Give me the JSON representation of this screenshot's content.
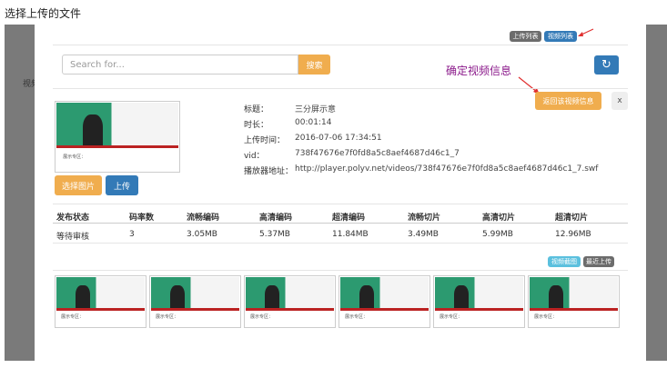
{
  "page_title": "选择上传的文件",
  "background_text": "视频",
  "tabs": {
    "upload_list": "上传列表",
    "video_list": "视频列表"
  },
  "search": {
    "placeholder": "Search for...",
    "button": "搜索"
  },
  "refresh_icon": "refresh-icon",
  "annotation": "确定视频信息",
  "return_button": "返回该视频信息",
  "close_button": "x",
  "info": {
    "labels": [
      "标题：",
      "时长：",
      "上传时间：",
      "vid：",
      "播放器地址："
    ],
    "values": [
      "三分屏示意",
      "00:01:14",
      "2016-07-06 17:34:51",
      "738f47676e7f0fd8a5c8aef4687d46c1_7",
      "http://player.polyv.net/videos/738f47676e7f0fd8a5c8aef4687d46c1_7.swf"
    ]
  },
  "preview_caption": "展示专区：",
  "buttons": {
    "select_image": "选择图片",
    "upload": "上传"
  },
  "table": {
    "headers": [
      "发布状态",
      "码率数",
      "流畅编码",
      "高清编码",
      "超清编码",
      "流畅切片",
      "高清切片",
      "超清切片"
    ],
    "row": [
      "等待审核",
      "3",
      "3.05MB",
      "5.37MB",
      "11.84MB",
      "3.49MB",
      "5.99MB",
      "12.96MB"
    ]
  },
  "small_buttons": {
    "screenshot": "视频截图",
    "recent": "最近上传"
  },
  "thumbnails": [
    "展示专区：",
    "展示专区：",
    "展示专区：",
    "展示专区：",
    "展示专区：",
    "展示专区："
  ],
  "colors": {
    "orange": "#f0ad4e",
    "blue": "#337ab7",
    "grey": "#6c6c6c",
    "purple": "#8b1a8b",
    "arrow": "#e03030"
  }
}
